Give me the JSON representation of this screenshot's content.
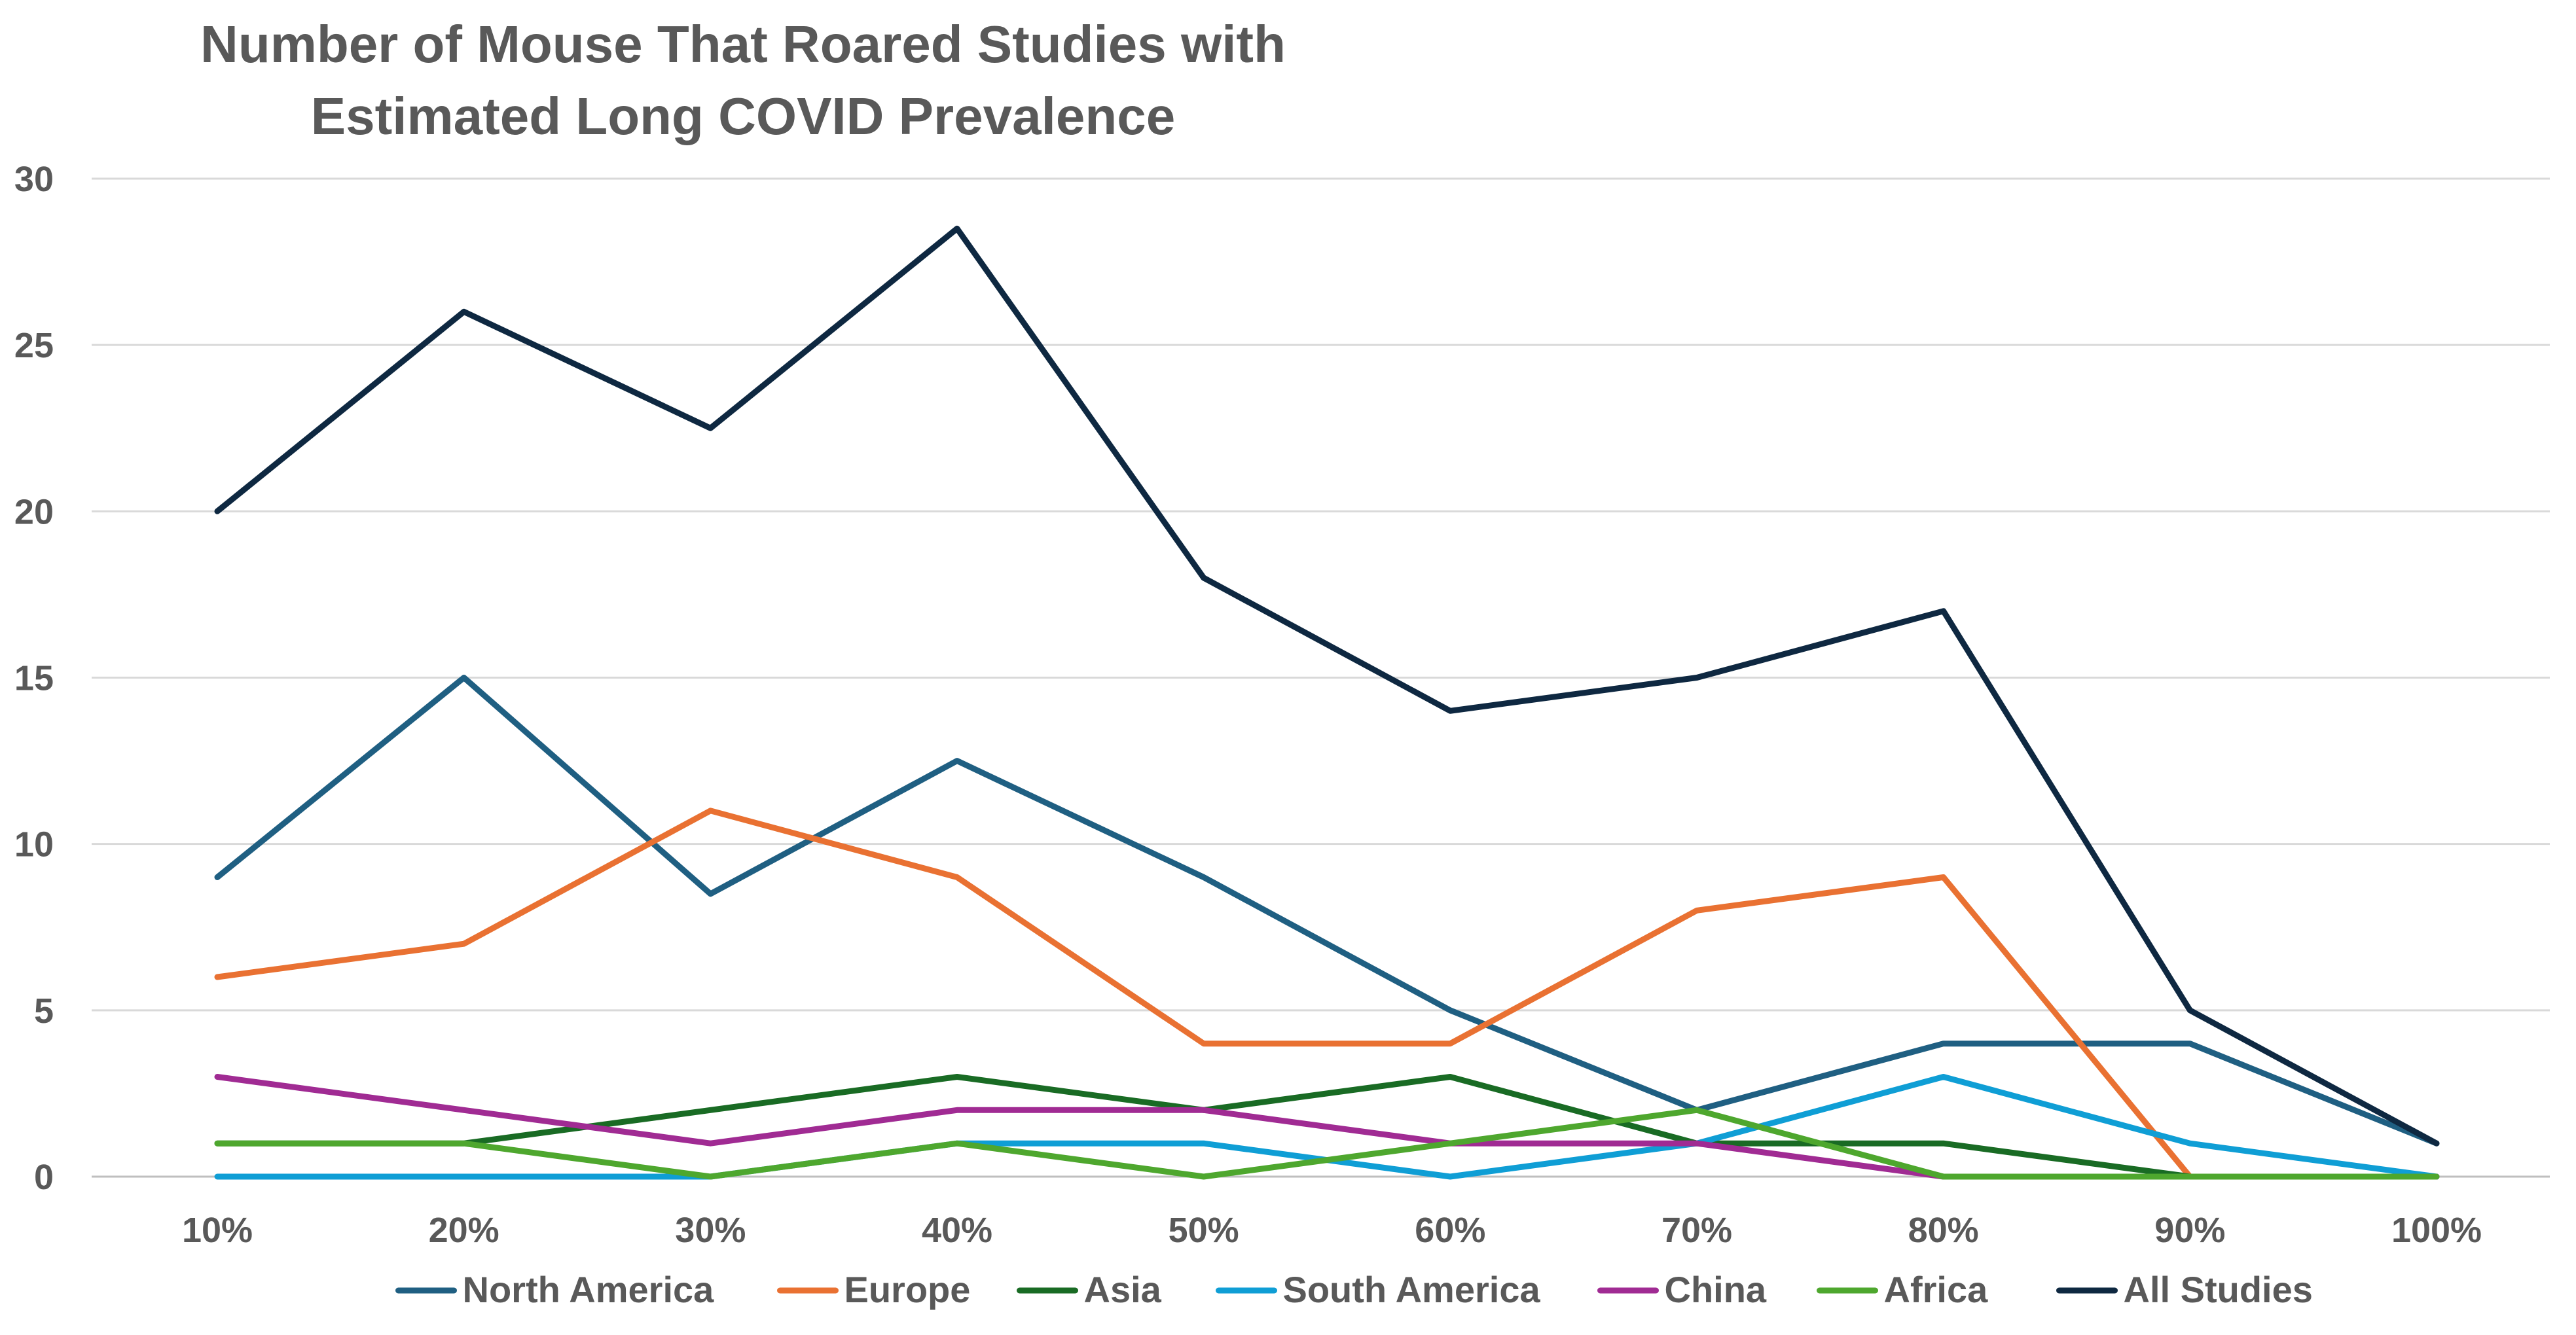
{
  "chart_data": {
    "type": "line",
    "title_lines": [
      "Number of Mouse That Roared Studies with",
      "Estimated Long COVID Prevalence"
    ],
    "categories": [
      "10%",
      "20%",
      "30%",
      "40%",
      "50%",
      "60%",
      "70%",
      "80%",
      "90%",
      "100%"
    ],
    "xlabel": "",
    "ylabel": "",
    "ylim": [
      0,
      30
    ],
    "yticks": [
      "0",
      "5",
      "10",
      "15",
      "20",
      "25",
      "30"
    ],
    "grid": true,
    "legend_position": "bottom",
    "series": [
      {
        "name": "North America",
        "color": "#1f5f82",
        "values": [
          9,
          15,
          8.5,
          12.5,
          9,
          5,
          2,
          4,
          4,
          1
        ]
      },
      {
        "name": "Europe",
        "color": "#e97132",
        "values": [
          6,
          7,
          11,
          9,
          4,
          4,
          8,
          9,
          0,
          null
        ]
      },
      {
        "name": "Asia",
        "color": "#196b24",
        "values": [
          1,
          1,
          2,
          3,
          2,
          3,
          1,
          1,
          0,
          0
        ]
      },
      {
        "name": "South America",
        "color": "#0f9ed5",
        "values": [
          0,
          0,
          0,
          1,
          1,
          0,
          1,
          3,
          1,
          0
        ]
      },
      {
        "name": "China",
        "color": "#a02b93",
        "values": [
          3,
          2,
          1,
          2,
          2,
          1,
          1,
          0,
          0,
          0
        ]
      },
      {
        "name": "Africa",
        "color": "#4ea72e",
        "values": [
          1,
          1,
          0,
          1,
          0,
          1,
          2,
          0,
          0,
          0
        ]
      },
      {
        "name": "All Studies",
        "color": "#0e2841",
        "values": [
          20,
          26,
          22.5,
          28.5,
          18,
          14,
          15,
          17,
          5,
          1
        ]
      }
    ]
  }
}
